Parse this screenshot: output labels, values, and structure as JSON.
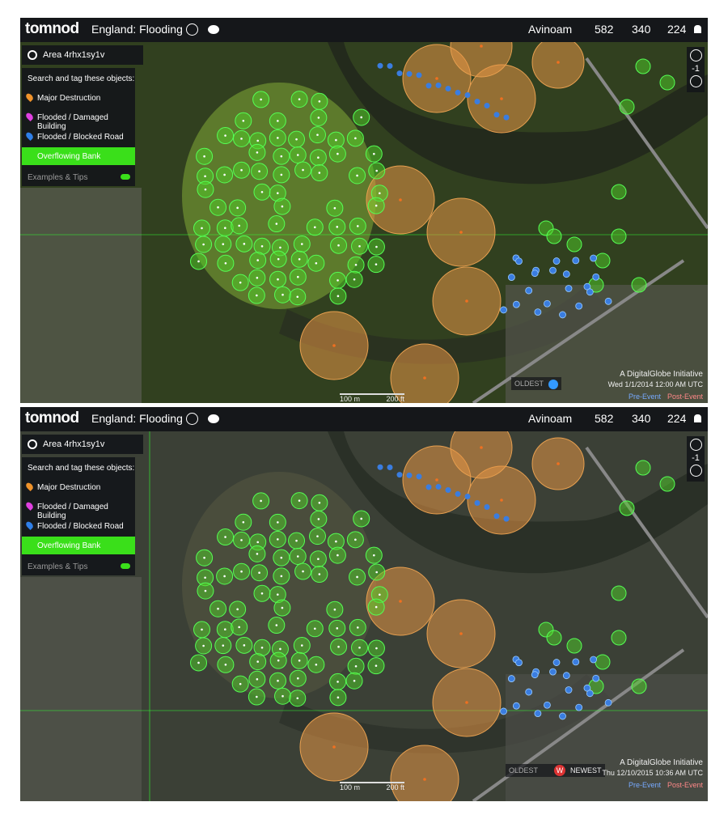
{
  "panels": [
    {
      "header": {
        "logo": "tomnod",
        "title": "England: Flooding",
        "user": "Avinoam",
        "counts": [
          "582",
          "340",
          "224"
        ]
      },
      "area": "Area 4rhx1sy1v",
      "zoom": "-1",
      "legend": {
        "heading": "Search and tag these objects:",
        "items": [
          "Major Destruction",
          "Flooded / Damaged Building",
          "Flooded / Blocked Road",
          "Overflowing Bank"
        ],
        "tips": "Examples & Tips"
      },
      "timeline": {
        "oldest": "OLDEST"
      },
      "attribution": "A DigitalGlobe Initiative",
      "timestamp": "Wed 1/1/2014 12:00 AM UTC",
      "events": [
        "Pre-Event",
        "Post-Event"
      ],
      "scale": [
        "100 m",
        "200 ft"
      ]
    },
    {
      "header": {
        "logo": "tomnod",
        "title": "England: Flooding",
        "user": "Avinoam",
        "counts": [
          "582",
          "340",
          "224"
        ]
      },
      "area": "Area 4rhx1sy1v",
      "zoom": "-1",
      "legend": {
        "heading": "Search and tag these objects:",
        "items": [
          "Major Destruction",
          "Flooded / Damaged Building",
          "Flooded / Blocked Road",
          "Overflowing Bank"
        ],
        "tips": "Examples & Tips"
      },
      "timeline": {
        "oldest": "OLDEST",
        "badge": "W",
        "newest": "NEWEST"
      },
      "attribution": "A DigitalGlobe Initiative",
      "timestamp": "Thu 12/10/2015 10:36 AM UTC",
      "events": [
        "Pre-Event",
        "Post-Event"
      ],
      "scale": [
        "100 m",
        "200 ft"
      ]
    }
  ]
}
